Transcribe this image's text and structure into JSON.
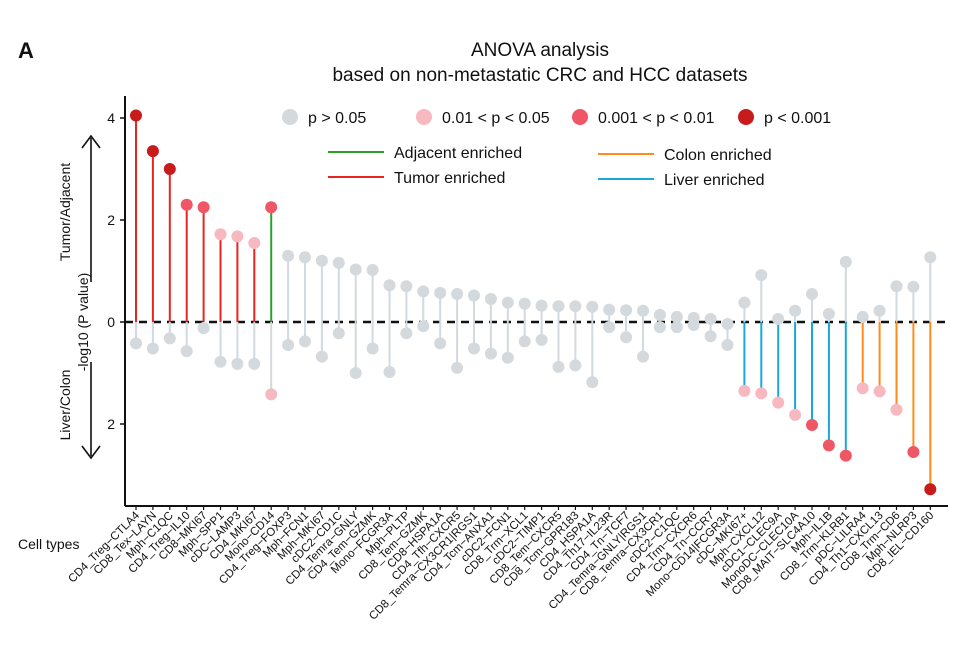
{
  "panel_label": "A",
  "chart_data": {
    "type": "lollipop",
    "title_line1": "ANOVA analysis",
    "title_line2": "based on non-metastatic CRC and HCC datasets",
    "x_axis_label": "Cell types",
    "y_axis_label": "-log10 (P value)",
    "y_upper_label": "Tumor/Adjacent",
    "y_lower_label": "Liver/Colon",
    "y_ticks": [
      {
        "value": 4,
        "label": "4"
      },
      {
        "value": 2,
        "label": "2"
      },
      {
        "value": 0,
        "label": "0"
      },
      {
        "value": -2,
        "label": "2"
      }
    ],
    "ylim": [
      -3.3,
      4.3
    ],
    "legend_pvalue": [
      {
        "label": "p > 0.05",
        "color": "#d3d9dc"
      },
      {
        "label": "0.01 < p < 0.05",
        "color": "#f7b8c0"
      },
      {
        "label": "0.001 < p < 0.01",
        "color": "#ef5767"
      },
      {
        "label": "p < 0.001",
        "color": "#c81b1b"
      }
    ],
    "legend_enrichment": [
      {
        "label": "Adjacent enriched",
        "color": "#2ca02c"
      },
      {
        "label": "Tumor enriched",
        "color": "#e8261f"
      },
      {
        "label": "Colon enriched",
        "color": "#ff8c1a"
      },
      {
        "label": "Liver enriched",
        "color": "#1aa7d9"
      }
    ],
    "categories": [
      "CD4_Treg−CTLA4",
      "CD8_Tex−LAYN",
      "Mph−C1QC",
      "CD4_Treg−IL10",
      "CD8−MKI67",
      "Mph−SPP1",
      "cDC−LAMP3",
      "CD4_MKI67",
      "Mono−CD14",
      "CD4_Treg−FOXP3",
      "Mph−FCN1",
      "Mph−MKI67",
      "cDC2−CD1C",
      "CD4_Temra−GNLY",
      "CD4_Tem−GZMK",
      "Mono−FCGR3A",
      "Mph−PLTP",
      "CD8_Tem−GZMK",
      "CD8−HSPA1A",
      "CD4_Tfh−CXCR5",
      "CD8_Temra−CX3CR1|RGS1",
      "CD4_Tcm−ANXA1",
      "cDC2−FCN1",
      "CD8_Trm−XCL1",
      "cDC2−TIMP1",
      "CD8_Tem−CXCR5",
      "CD8_Tcm−GPR183",
      "CD4_HSPA1A",
      "CD4_Th17−IL23R",
      "CD4_Tn−TCF7",
      "CD4_Temra−GNLY|RGS1",
      "CD8_Temra−CX3CR1",
      "cDC2−C1QC",
      "CD4_Trm−CXCR6",
      "CD4_Tn−CCR7",
      "Mono−CD14|FCGR3A",
      "cDC−MKI67+",
      "Mph−CXCL12",
      "cDC1−CLEC9A",
      "MonoDC−CLEC10A",
      "CD8_MAIT−SLC4A10",
      "Mph−IL1B",
      "CD8_Trm−KLRB1",
      "pDC−LILRA4",
      "CD4_Th1−CXCL13",
      "CD8_Trm−CD6",
      "Mph−NLRP3",
      "CD8_IEL−CD160"
    ],
    "series": [
      {
        "name": "Tumor vs Adjacent (-log10 P, up)",
        "values": [
          4.05,
          3.35,
          3.0,
          2.3,
          2.25,
          1.72,
          1.68,
          1.55,
          2.25,
          1.3,
          1.27,
          1.2,
          1.16,
          1.03,
          1.02,
          0.72,
          0.7,
          0.6,
          0.57,
          0.55,
          0.52,
          0.45,
          0.38,
          0.36,
          0.32,
          0.31,
          0.31,
          0.3,
          0.24,
          0.23,
          0.22,
          0.14,
          0.1,
          0.08,
          0.06,
          -0.04,
          0.38,
          0.92,
          0.06,
          0.22,
          0.55,
          0.16,
          1.18,
          0.1,
          0.22,
          0.7,
          0.69,
          1.27
        ],
        "significance": [
          "p < 0.001",
          "p < 0.001",
          "p < 0.001",
          "0.001 < p < 0.01",
          "0.001 < p < 0.01",
          "0.01 < p < 0.05",
          "0.01 < p < 0.05",
          "0.01 < p < 0.05",
          "0.001 < p < 0.01",
          "p > 0.05",
          "p > 0.05",
          "p > 0.05",
          "p > 0.05",
          "p > 0.05",
          "p > 0.05",
          "p > 0.05",
          "p > 0.05",
          "p > 0.05",
          "p > 0.05",
          "p > 0.05",
          "p > 0.05",
          "p > 0.05",
          "p > 0.05",
          "p > 0.05",
          "p > 0.05",
          "p > 0.05",
          "p > 0.05",
          "p > 0.05",
          "p > 0.05",
          "p > 0.05",
          "p > 0.05",
          "p > 0.05",
          "p > 0.05",
          "p > 0.05",
          "p > 0.05",
          "p > 0.05",
          "p > 0.05",
          "p > 0.05",
          "p > 0.05",
          "p > 0.05",
          "p > 0.05",
          "p > 0.05",
          "p > 0.05",
          "p > 0.05",
          "p > 0.05",
          "p > 0.05",
          "p > 0.05",
          "p > 0.05"
        ],
        "enrichment": [
          "Tumor enriched",
          "Tumor enriched",
          "Tumor enriched",
          "Tumor enriched",
          "Tumor enriched",
          "Tumor enriched",
          "Tumor enriched",
          "Tumor enriched",
          "Adjacent enriched",
          "",
          "",
          "",
          "",
          "",
          "",
          "",
          "",
          "",
          "",
          "",
          "",
          "",
          "",
          "",
          "",
          "",
          "",
          "",
          "",
          "",
          "",
          "",
          "",
          "",
          "",
          "",
          "",
          "",
          "",
          "",
          "",
          "",
          "",
          "",
          "",
          "",
          "",
          ""
        ]
      },
      {
        "name": "Liver vs Colon (-log10 P, down)",
        "values": [
          -0.42,
          -0.52,
          -0.32,
          -0.57,
          -0.12,
          -0.78,
          -0.82,
          -0.82,
          -1.42,
          -0.45,
          -0.38,
          -0.68,
          -0.22,
          -1.0,
          -0.52,
          -0.98,
          -0.22,
          -0.08,
          -0.42,
          -0.9,
          -0.52,
          -0.62,
          -0.7,
          -0.38,
          -0.35,
          -0.88,
          -0.85,
          -1.18,
          -0.1,
          -0.3,
          -0.68,
          -0.1,
          -0.1,
          -0.06,
          -0.28,
          -0.45,
          -1.35,
          -1.4,
          -1.58,
          -1.82,
          -2.02,
          -2.42,
          -2.62,
          -1.3,
          -1.36,
          -1.72,
          -2.55,
          -3.28
        ],
        "significance": [
          "p > 0.05",
          "p > 0.05",
          "p > 0.05",
          "p > 0.05",
          "p > 0.05",
          "p > 0.05",
          "p > 0.05",
          "p > 0.05",
          "0.01 < p < 0.05",
          "p > 0.05",
          "p > 0.05",
          "p > 0.05",
          "p > 0.05",
          "p > 0.05",
          "p > 0.05",
          "p > 0.05",
          "p > 0.05",
          "p > 0.05",
          "p > 0.05",
          "p > 0.05",
          "p > 0.05",
          "p > 0.05",
          "p > 0.05",
          "p > 0.05",
          "p > 0.05",
          "p > 0.05",
          "p > 0.05",
          "p > 0.05",
          "p > 0.05",
          "p > 0.05",
          "p > 0.05",
          "p > 0.05",
          "p > 0.05",
          "p > 0.05",
          "p > 0.05",
          "p > 0.05",
          "0.01 < p < 0.05",
          "0.01 < p < 0.05",
          "0.01 < p < 0.05",
          "0.01 < p < 0.05",
          "0.001 < p < 0.01",
          "0.001 < p < 0.01",
          "0.001 < p < 0.01",
          "0.01 < p < 0.05",
          "0.01 < p < 0.05",
          "0.01 < p < 0.05",
          "0.001 < p < 0.01",
          "p < 0.001"
        ],
        "enrichment": [
          "",
          "",
          "",
          "",
          "",
          "",
          "",
          "",
          "",
          "",
          "",
          "",
          "",
          "",
          "",
          "",
          "",
          "",
          "",
          "",
          "",
          "",
          "",
          "",
          "",
          "",
          "",
          "",
          "",
          "",
          "",
          "",
          "",
          "",
          "",
          "",
          "Liver enriched",
          "Liver enriched",
          "Liver enriched",
          "Liver enriched",
          "Liver enriched",
          "Liver enriched",
          "Liver enriched",
          "Colon enriched",
          "Colon enriched",
          "Colon enriched",
          "Colon enriched",
          "Colon enriched"
        ]
      }
    ]
  }
}
